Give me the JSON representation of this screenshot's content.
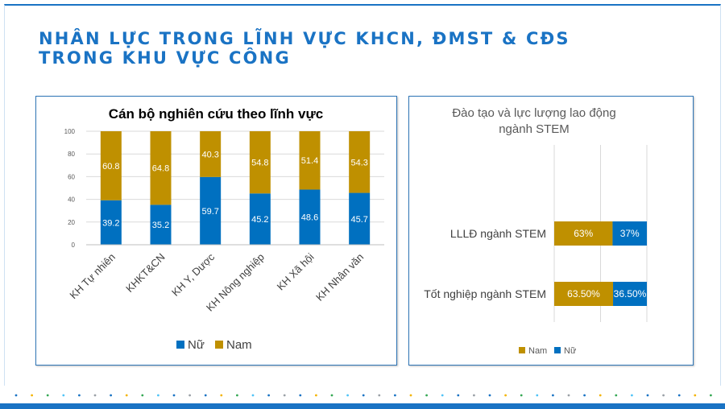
{
  "slide": {
    "title": "NHÂN LỰC TRONG LĨNH VỰC KHCN, ĐMST & CĐS\nTRONG KHU VỰC CÔNG"
  },
  "colors": {
    "female": "#0070c0",
    "male": "#bf9000",
    "accent": "#1a73c4"
  },
  "chart_data": [
    {
      "type": "bar",
      "stacked": true,
      "orientation": "vertical",
      "title": "Cán bộ nghiên cứu theo lĩnh vực",
      "categories": [
        "KH Tự nhiên",
        "KHKT&CN",
        "KH Y, Dược",
        "KH Nông nghiệp",
        "KH Xã hội",
        "KH Nhân văn"
      ],
      "series": [
        {
          "name": "Nữ",
          "values": [
            39.2,
            35.2,
            59.7,
            45.2,
            48.6,
            45.7
          ]
        },
        {
          "name": "Nam",
          "values": [
            60.8,
            64.8,
            40.3,
            54.8,
            51.4,
            54.3
          ]
        }
      ],
      "data_labels": {
        "Nữ": [
          "39.2",
          "35.2",
          "59.7",
          "45.2",
          "48.6",
          "45.7"
        ],
        "Nam": [
          "60.8",
          "64.8",
          "40.3",
          "54.8",
          "51.4",
          "54.3"
        ]
      },
      "ylim": [
        0,
        100
      ],
      "yticks": [
        0,
        20,
        40,
        60,
        80,
        100
      ],
      "grid": true,
      "legend": "bottom"
    },
    {
      "type": "bar",
      "stacked": true,
      "orientation": "horizontal",
      "title": "Đào tạo và lực lượng lao động ngành STEM",
      "categories": [
        "LLLĐ ngành STEM",
        "Tốt nghiệp ngành STEM"
      ],
      "series": [
        {
          "name": "Nam",
          "values": [
            63,
            63.5
          ]
        },
        {
          "name": "Nữ",
          "values": [
            37,
            36.5
          ]
        }
      ],
      "data_labels": {
        "Nam": [
          "63%",
          "63.50%"
        ],
        "Nữ": [
          "37%",
          "36.50%"
        ]
      },
      "xlim": [
        0,
        100
      ],
      "grid": true,
      "legend": "bottom"
    }
  ]
}
